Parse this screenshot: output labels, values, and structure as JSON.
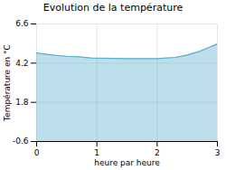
{
  "chart_data": {
    "type": "area",
    "title": "Evolution de la température",
    "xlabel": "heure par heure",
    "ylabel": "Température en °C",
    "x": [
      0,
      0.15,
      0.3,
      0.5,
      0.7,
      0.9,
      1.0,
      1.1,
      1.3,
      1.5,
      1.7,
      1.9,
      2.0,
      2.1,
      2.3,
      2.5,
      2.7,
      2.85,
      3.0
    ],
    "values": [
      4.82,
      4.75,
      4.68,
      4.62,
      4.58,
      4.52,
      4.5,
      4.5,
      4.49,
      4.48,
      4.48,
      4.48,
      4.48,
      4.5,
      4.55,
      4.7,
      4.92,
      5.15,
      5.38
    ],
    "color": "#5ab0cc",
    "xlim": [
      0,
      3
    ],
    "ylim": [
      -0.6,
      6.6
    ],
    "xticks": [
      0,
      1,
      2,
      3
    ],
    "yticks": [
      -0.6,
      1.8,
      4.2,
      6.6
    ],
    "grid": true
  }
}
